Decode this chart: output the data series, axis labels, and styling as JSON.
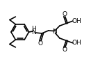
{
  "bg_color": "#ffffff",
  "line_color": "#000000",
  "line_width": 1.2,
  "font_size": 6.5,
  "figsize": [
    1.54,
    0.92
  ],
  "dpi": 100,
  "xlim": [
    0,
    15.4
  ],
  "ylim": [
    0,
    9.2
  ]
}
